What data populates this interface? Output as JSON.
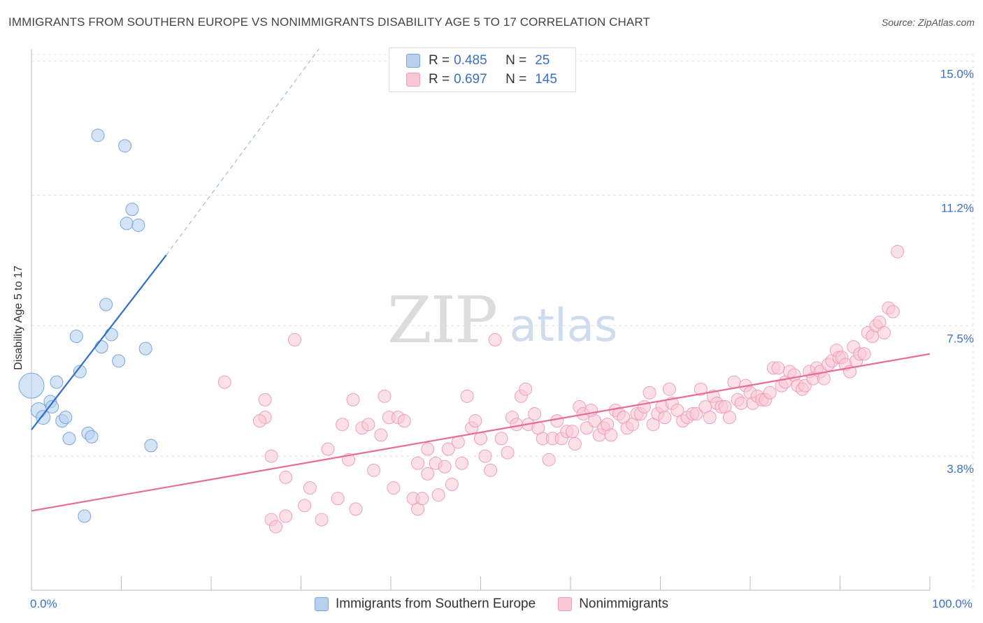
{
  "title": "IMMIGRANTS FROM SOUTHERN EUROPE VS NONIMMIGRANTS DISABILITY AGE 5 TO 17 CORRELATION CHART",
  "source": "Source: ZipAtlas.com",
  "watermark": {
    "zip": "ZIP",
    "atlas": "atlas"
  },
  "legend_stats": [
    {
      "r_label": "R =",
      "r_value": "0.485",
      "n_label": "N =",
      "n_value": "25",
      "fill": "#b8d0f0",
      "stroke": "#7aa6dc"
    },
    {
      "r_label": "R =",
      "r_value": "0.697",
      "n_label": "N =",
      "n_value": "145",
      "fill": "#f9c6d5",
      "stroke": "#eca0b8"
    }
  ],
  "legend_bottom": [
    {
      "label": "Immigrants from Southern Europe",
      "fill": "#b8d0f0",
      "stroke": "#7aa6dc"
    },
    {
      "label": "Nonimmigrants",
      "fill": "#f9c6d5",
      "stroke": "#eca0b8"
    }
  ],
  "colors": {
    "blue_fill": "#b8d0f0",
    "blue_stroke": "#7aa6dc",
    "blue_line": "#2f6fcc",
    "pink_fill": "#f9c6d5",
    "pink_stroke": "#eca0b8",
    "pink_line": "#e86c96",
    "tick_label": "#3a70c8",
    "grid": "#e2e2e2"
  },
  "chart_data": {
    "type": "scatter",
    "title": "IMMIGRANTS FROM SOUTHERN EUROPE VS NONIMMIGRANTS DISABILITY AGE 5 TO 17 CORRELATION CHART",
    "xlabel": "",
    "ylabel": "Disability Age 5 to 17",
    "xlim": [
      0,
      100
    ],
    "ylim": [
      0,
      15.35
    ],
    "x_tick_labels": [
      {
        "value": 0,
        "label": "0.0%"
      },
      {
        "value": 100,
        "label": "100.0%"
      }
    ],
    "x_minor_ticks": [
      10,
      20,
      30,
      40,
      50,
      60,
      70,
      80,
      90,
      100
    ],
    "y_ticks": [
      {
        "value": 3.8,
        "label": "3.8%"
      },
      {
        "value": 7.5,
        "label": "7.5%"
      },
      {
        "value": 11.2,
        "label": "11.2%"
      },
      {
        "value": 15.0,
        "label": "15.0%"
      }
    ],
    "grid": true,
    "legend_position": "top-center",
    "series": [
      {
        "name": "Immigrants from Southern Europe",
        "r": 0.485,
        "n": 25,
        "points": [
          [
            0,
            5.8,
            18
          ],
          [
            0.8,
            5.1,
            11
          ],
          [
            1.3,
            4.9,
            10
          ],
          [
            2.1,
            5.35,
            9
          ],
          [
            2.3,
            5.2,
            9
          ],
          [
            2.8,
            5.9,
            9
          ],
          [
            3.4,
            4.8,
            9
          ],
          [
            3.8,
            4.9,
            9
          ],
          [
            4.2,
            4.3,
            9
          ],
          [
            5.0,
            7.2,
            9
          ],
          [
            5.4,
            6.2,
            9
          ],
          [
            6.3,
            4.45,
            9
          ],
          [
            6.7,
            4.35,
            9
          ],
          [
            7.4,
            12.9,
            9
          ],
          [
            7.8,
            6.9,
            9
          ],
          [
            8.3,
            8.1,
            9
          ],
          [
            8.9,
            7.25,
            9
          ],
          [
            9.7,
            6.5,
            9
          ],
          [
            10.4,
            12.6,
            9
          ],
          [
            10.6,
            10.4,
            9
          ],
          [
            11.2,
            10.8,
            9
          ],
          [
            11.9,
            10.35,
            9
          ],
          [
            12.7,
            6.85,
            9
          ],
          [
            13.3,
            4.1,
            9
          ],
          [
            5.9,
            2.1,
            9
          ]
        ],
        "trend_solid": [
          [
            0,
            4.55
          ],
          [
            15,
            9.5
          ]
        ],
        "trend_dashed": [
          [
            15,
            9.5
          ],
          [
            32,
            15.35
          ]
        ]
      },
      {
        "name": "Nonimmigrants",
        "r": 0.697,
        "n": 145,
        "points": [
          [
            21.5,
            5.9
          ],
          [
            26.0,
            4.9
          ],
          [
            25.4,
            4.8
          ],
          [
            26.0,
            5.4
          ],
          [
            26.7,
            3.8
          ],
          [
            26.7,
            2.0
          ],
          [
            27.2,
            1.8
          ],
          [
            28.3,
            3.2
          ],
          [
            28.3,
            2.1
          ],
          [
            29.3,
            7.1
          ],
          [
            30.4,
            2.4
          ],
          [
            31.0,
            2.9
          ],
          [
            32.3,
            2.0
          ],
          [
            33.0,
            4.0
          ],
          [
            34.1,
            2.6
          ],
          [
            34.6,
            4.7
          ],
          [
            35.3,
            3.7
          ],
          [
            35.8,
            5.4
          ],
          [
            36.1,
            2.3
          ],
          [
            36.8,
            4.6
          ],
          [
            37.5,
            4.7
          ],
          [
            38.1,
            3.4
          ],
          [
            38.9,
            4.4
          ],
          [
            39.3,
            5.5
          ],
          [
            39.8,
            4.9
          ],
          [
            40.3,
            2.9
          ],
          [
            40.8,
            4.9
          ],
          [
            41.5,
            4.8
          ],
          [
            42.5,
            2.6
          ],
          [
            43.0,
            2.3
          ],
          [
            43.5,
            2.6
          ],
          [
            43.0,
            3.6
          ],
          [
            44.1,
            3.3
          ],
          [
            44.1,
            4.0
          ],
          [
            45.0,
            3.6
          ],
          [
            45.3,
            2.7
          ],
          [
            46.0,
            3.5
          ],
          [
            46.4,
            4.0
          ],
          [
            46.8,
            3.0
          ],
          [
            47.5,
            4.2
          ],
          [
            47.9,
            3.6
          ],
          [
            48.5,
            5.5
          ],
          [
            49.0,
            4.6
          ],
          [
            49.4,
            4.8
          ],
          [
            50.0,
            4.3
          ],
          [
            50.5,
            3.8
          ],
          [
            51.1,
            3.4
          ],
          [
            51.6,
            7.1
          ],
          [
            52.3,
            4.3
          ],
          [
            53.0,
            3.9
          ],
          [
            53.5,
            4.9
          ],
          [
            54.0,
            4.7
          ],
          [
            54.5,
            5.5
          ],
          [
            55.0,
            5.7
          ],
          [
            55.3,
            4.7
          ],
          [
            56.0,
            5.0
          ],
          [
            56.4,
            4.6
          ],
          [
            56.9,
            4.3
          ],
          [
            57.6,
            3.7
          ],
          [
            58.0,
            4.3
          ],
          [
            58.5,
            4.8
          ],
          [
            59.0,
            4.3
          ],
          [
            59.6,
            4.5
          ],
          [
            60.2,
            4.5
          ],
          [
            60.5,
            4.15
          ],
          [
            61.0,
            5.2
          ],
          [
            61.4,
            5.0
          ],
          [
            61.8,
            4.6
          ],
          [
            62.3,
            5.1
          ],
          [
            62.7,
            4.8
          ],
          [
            63.2,
            4.4
          ],
          [
            63.7,
            4.6
          ],
          [
            64.1,
            4.7
          ],
          [
            64.5,
            4.4
          ],
          [
            65.0,
            5.1
          ],
          [
            65.4,
            5.0
          ],
          [
            65.9,
            4.9
          ],
          [
            66.3,
            4.6
          ],
          [
            66.9,
            4.7
          ],
          [
            67.4,
            5.0
          ],
          [
            67.8,
            5.0
          ],
          [
            68.2,
            5.2
          ],
          [
            68.8,
            5.6
          ],
          [
            69.2,
            4.7
          ],
          [
            69.7,
            5.0
          ],
          [
            70.2,
            5.2
          ],
          [
            70.5,
            4.9
          ],
          [
            71.0,
            5.7
          ],
          [
            71.3,
            5.3
          ],
          [
            71.9,
            5.1
          ],
          [
            72.5,
            4.8
          ],
          [
            73.0,
            4.9
          ],
          [
            73.6,
            5.0
          ],
          [
            74.0,
            5.0
          ],
          [
            74.5,
            5.7
          ],
          [
            75.0,
            5.2
          ],
          [
            75.5,
            4.9
          ],
          [
            75.9,
            5.5
          ],
          [
            76.3,
            5.3
          ],
          [
            76.8,
            5.2
          ],
          [
            77.2,
            5.2
          ],
          [
            77.7,
            4.9
          ],
          [
            78.2,
            5.9
          ],
          [
            78.6,
            5.4
          ],
          [
            79.0,
            5.3
          ],
          [
            79.5,
            5.8
          ],
          [
            80.0,
            5.6
          ],
          [
            80.3,
            5.3
          ],
          [
            80.8,
            5.5
          ],
          [
            81.3,
            5.4
          ],
          [
            81.7,
            5.4
          ],
          [
            82.2,
            5.6
          ],
          [
            82.6,
            6.3
          ],
          [
            83.1,
            6.3
          ],
          [
            83.5,
            5.8
          ],
          [
            83.9,
            5.9
          ],
          [
            84.4,
            6.2
          ],
          [
            84.9,
            6.1
          ],
          [
            85.3,
            5.8
          ],
          [
            85.8,
            5.7
          ],
          [
            86.1,
            5.8
          ],
          [
            86.6,
            6.2
          ],
          [
            87.0,
            6.0
          ],
          [
            87.4,
            6.3
          ],
          [
            87.8,
            6.2
          ],
          [
            88.2,
            6.0
          ],
          [
            88.7,
            6.4
          ],
          [
            89.1,
            6.5
          ],
          [
            89.6,
            6.8
          ],
          [
            89.9,
            6.6
          ],
          [
            90.2,
            6.6
          ],
          [
            90.6,
            6.4
          ],
          [
            91.1,
            6.2
          ],
          [
            91.5,
            6.9
          ],
          [
            91.8,
            6.5
          ],
          [
            92.2,
            6.7
          ],
          [
            92.7,
            6.7
          ],
          [
            93.1,
            7.3
          ],
          [
            93.6,
            7.2
          ],
          [
            94.0,
            7.5
          ],
          [
            94.4,
            7.6
          ],
          [
            94.9,
            7.3
          ],
          [
            95.4,
            8.0
          ],
          [
            95.9,
            7.9
          ],
          [
            96.4,
            9.6
          ]
        ],
        "trend_solid": [
          [
            0,
            2.25
          ],
          [
            100,
            6.7
          ]
        ]
      }
    ]
  }
}
